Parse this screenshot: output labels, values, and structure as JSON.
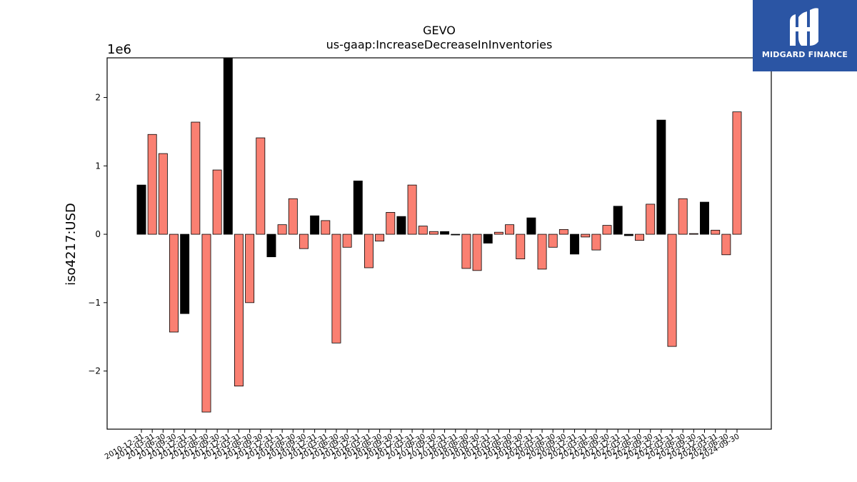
{
  "logo": {
    "text": "MIDGARD FINANCE"
  },
  "chart_data": {
    "type": "bar",
    "title": "GEVO",
    "subtitle": "us-gaap:IncreaseDecreaseInInventories",
    "ylabel": "iso4217:USD",
    "xlabel": "",
    "scale_label": "1e6",
    "ylim": [
      -2.85,
      2.58
    ],
    "yticks": [
      -2,
      -1,
      0,
      1,
      2
    ],
    "ytick_labels": [
      "−2",
      "−1",
      "0",
      "1",
      "2"
    ],
    "grid": false,
    "colors": {
      "positive": "#fa8072",
      "negative": "#000000"
    },
    "categories": [
      "2010-12-31",
      "2011-03-31",
      "2011-06-30",
      "2011-09-30",
      "2011-12-31",
      "2012-03-31",
      "2012-06-30",
      "2012-09-30",
      "2012-12-31",
      "2013-03-31",
      "2013-06-30",
      "2013-09-30",
      "2013-12-31",
      "2014-03-31",
      "2014-06-30",
      "2014-09-30",
      "2014-12-31",
      "2015-03-31",
      "2015-06-30",
      "2015-09-30",
      "2015-12-31",
      "2016-03-31",
      "2016-06-30",
      "2016-09-30",
      "2016-12-31",
      "2017-03-31",
      "2017-06-30",
      "2017-09-30",
      "2017-12-31",
      "2018-03-31",
      "2018-06-30",
      "2018-09-30",
      "2018-12-31",
      "2019-03-31",
      "2019-06-30",
      "2019-09-30",
      "2019-12-31",
      "2020-03-31",
      "2020-06-30",
      "2020-09-30",
      "2020-12-31",
      "2021-03-31",
      "2021-06-30",
      "2021-09-30",
      "2021-12-31",
      "2022-03-31",
      "2022-06-30",
      "2022-09-30",
      "2022-12-31",
      "2023-03-31",
      "2023-06-30",
      "2023-09-30",
      "2023-12-31",
      "2024-03-31",
      "2024-06-30",
      "2024-09-30"
    ],
    "values": [
      0.72,
      1.46,
      1.18,
      -1.43,
      -1.16,
      1.64,
      -2.6,
      0.94,
      2.6,
      -2.22,
      -1.0,
      1.41,
      -0.33,
      0.14,
      0.52,
      -0.21,
      0.27,
      0.2,
      -1.59,
      -0.19,
      0.78,
      -0.49,
      -0.1,
      0.32,
      0.26,
      0.72,
      0.12,
      0.04,
      0.04,
      -0.01,
      -0.5,
      -0.53,
      -0.13,
      0.03,
      0.14,
      -0.36,
      0.24,
      -0.51,
      -0.19,
      0.07,
      -0.29,
      -0.04,
      -0.23,
      0.13,
      0.41,
      -0.02,
      -0.09,
      0.44,
      1.67,
      -1.64,
      0.52,
      0.01,
      0.47,
      0.06,
      -0.3,
      1.79
    ],
    "bar_colors": [
      "negative",
      "positive",
      "positive",
      "positive",
      "negative",
      "positive",
      "positive",
      "positive",
      "negative",
      "positive",
      "positive",
      "positive",
      "negative",
      "positive",
      "positive",
      "positive",
      "negative",
      "positive",
      "positive",
      "positive",
      "negative",
      "positive",
      "positive",
      "positive",
      "negative",
      "positive",
      "positive",
      "positive",
      "negative",
      "negative",
      "positive",
      "positive",
      "negative",
      "positive",
      "positive",
      "positive",
      "negative",
      "positive",
      "positive",
      "positive",
      "negative",
      "positive",
      "positive",
      "positive",
      "negative",
      "negative",
      "positive",
      "positive",
      "negative",
      "positive",
      "positive",
      "positive",
      "negative",
      "positive",
      "positive",
      "positive"
    ]
  }
}
